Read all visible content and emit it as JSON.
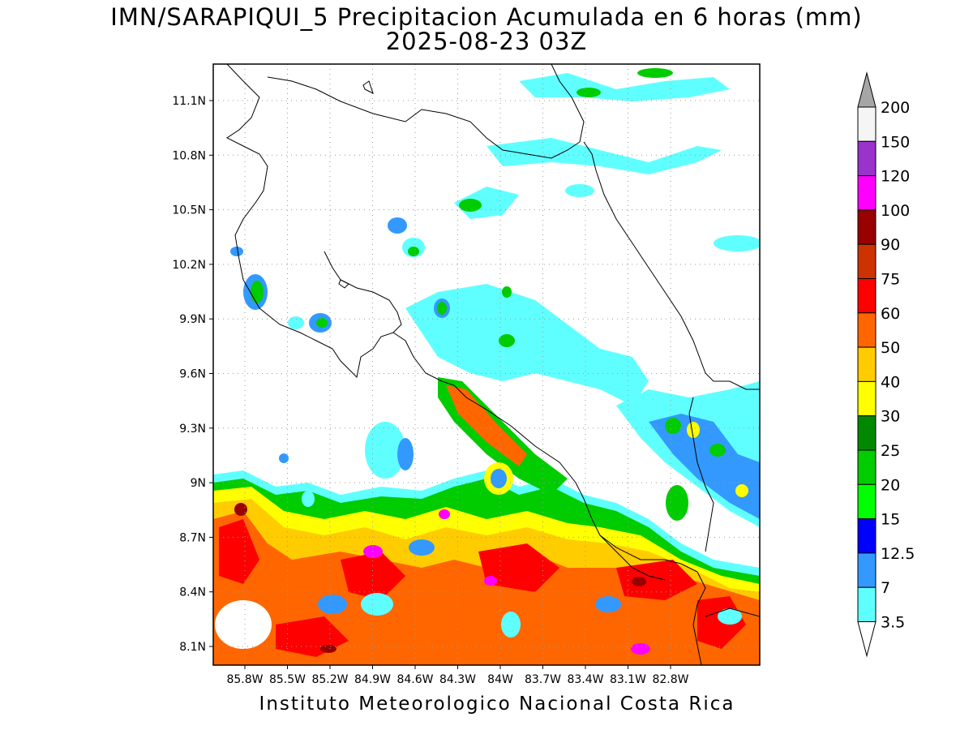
{
  "title_line1": "IMN/SARAPIQUI_5 Precipitacion Acumulada en 6 horas (mm)",
  "title_line2": "2025-08-23 03Z",
  "footer": "Instituto Meteorologico Nacional Costa Rica",
  "lat_labels": [
    "11.1N",
    "10.8N",
    "10.5N",
    "10.2N",
    "9.9N",
    "9.6N",
    "9.3N",
    "9N",
    "8.7N",
    "8.4N",
    "8.1N"
  ],
  "lon_labels": [
    "85.8W",
    "85.5W",
    "85.2W",
    "84.9W",
    "84.6W",
    "84.3W",
    "84W",
    "83.7W",
    "83.4W",
    "83.1W",
    "82.8W"
  ],
  "legend": {
    "levels": [
      "3.5",
      "7",
      "12.5",
      "15",
      "20",
      "25",
      "30",
      "40",
      "50",
      "60",
      "75",
      "90",
      "100",
      "120",
      "150",
      "200"
    ],
    "colors": [
      "#ffffff",
      "#60ffff",
      "#3399ff",
      "#0000ff",
      "#00ff00",
      "#00cc00",
      "#008800",
      "#ffff00",
      "#ffcc00",
      "#ff6600",
      "#ff0000",
      "#cc3300",
      "#990000",
      "#ff00ff",
      "#9933cc",
      "#f5f5f5"
    ],
    "top_arrow_color": "#a6a6a6"
  }
}
